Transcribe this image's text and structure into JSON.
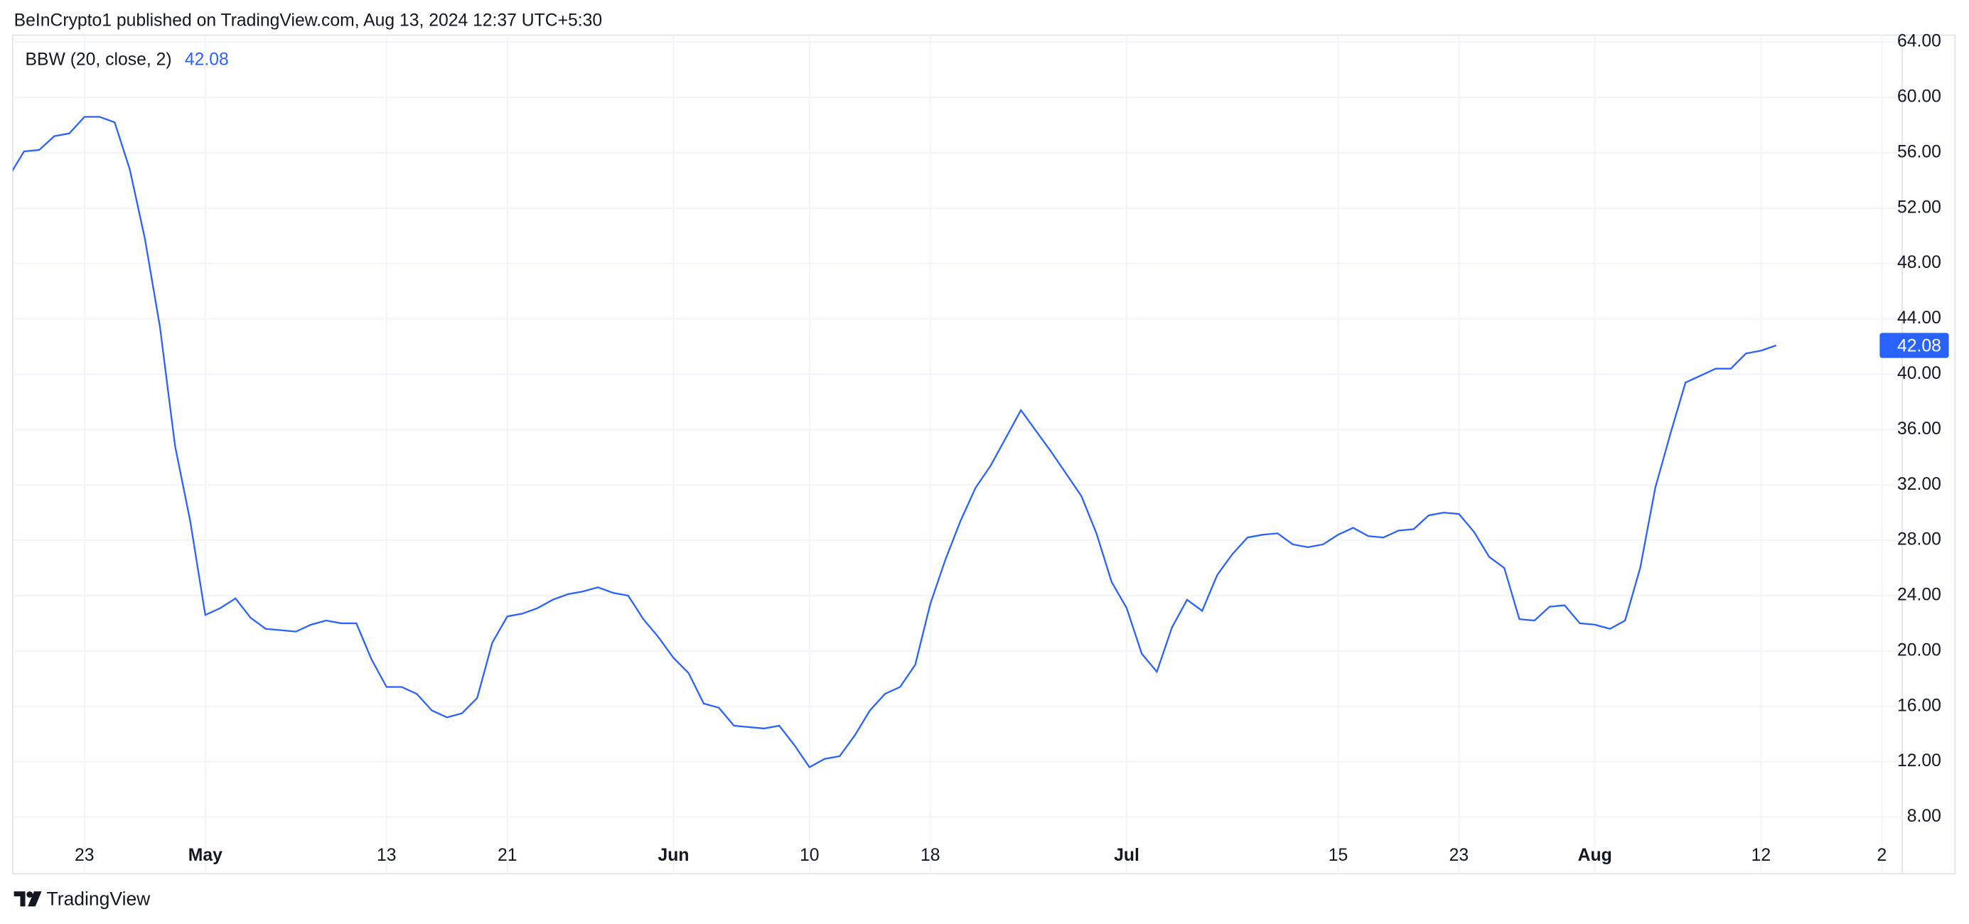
{
  "header": "BeInCrypto1 published on TradingView.com, Aug 13, 2024 12:37 UTC+5:30",
  "footer": "TradingView",
  "chart_data": {
    "type": "line",
    "categories": [
      null,
      null,
      null,
      null,
      null,
      "23",
      null,
      null,
      null,
      null,
      null,
      null,
      null,
      "May",
      null,
      null,
      null,
      null,
      null,
      null,
      null,
      null,
      null,
      null,
      null,
      "13",
      null,
      null,
      null,
      null,
      null,
      null,
      null,
      "21",
      null,
      null,
      null,
      null,
      null,
      null,
      null,
      null,
      null,
      null,
      "Jun",
      null,
      null,
      null,
      null,
      null,
      null,
      null,
      null,
      "10",
      null,
      null,
      null,
      null,
      null,
      null,
      null,
      "18",
      null,
      null,
      null,
      null,
      null,
      null,
      null,
      null,
      null,
      null,
      null,
      null,
      "Jul",
      null,
      null,
      null,
      null,
      null,
      null,
      null,
      null,
      null,
      null,
      null,
      null,
      null,
      "15",
      null,
      null,
      null,
      null,
      null,
      null,
      null,
      "23",
      null,
      null,
      null,
      null,
      null,
      null,
      null,
      null,
      "Aug",
      null,
      null,
      null,
      null,
      null,
      null,
      null,
      null,
      null,
      null,
      "12",
      null,
      null,
      null,
      null,
      null,
      null,
      null,
      "2",
      null
    ],
    "series": [
      {
        "name": "BBW (20, close, 2)",
        "color": "#2962ff",
        "values": [
          54.3,
          56.1,
          56.2,
          57.2,
          57.4,
          58.6,
          58.6,
          58.2,
          54.8,
          49.8,
          43.4,
          34.8,
          29.4,
          22.6,
          23.1,
          23.8,
          22.4,
          21.6,
          21.5,
          21.4,
          21.9,
          22.2,
          22.0,
          22.0,
          19.4,
          17.4,
          17.4,
          16.9,
          15.7,
          15.2,
          15.5,
          16.6,
          20.6,
          22.5,
          22.7,
          23.1,
          23.7,
          24.1,
          24.3,
          24.6,
          24.2,
          24.0,
          22.3,
          21.0,
          19.5,
          18.4,
          16.2,
          15.9,
          14.6,
          14.5,
          14.4,
          14.6,
          13.2,
          11.6,
          12.2,
          12.4,
          13.9,
          15.7,
          16.9,
          17.4,
          19.0,
          23.4,
          26.6,
          29.4,
          31.8,
          33.4,
          35.4,
          37.4,
          35.9,
          34.4,
          32.8,
          31.2,
          28.5,
          25.0,
          23.1,
          19.8,
          18.5,
          21.7,
          23.7,
          22.9,
          25.5,
          27.0,
          28.2,
          28.4,
          28.5,
          27.7,
          27.5,
          27.7,
          28.4,
          28.9,
          28.3,
          28.2,
          28.7,
          28.8,
          29.8,
          30.0,
          29.9,
          28.6,
          26.8,
          26.0,
          22.3,
          22.2,
          23.2,
          23.3,
          22.0,
          21.9,
          21.6,
          22.2,
          26.0,
          31.8,
          35.7,
          39.4,
          39.9,
          40.4,
          40.4,
          41.5,
          41.7,
          42.08,
          null,
          null,
          null,
          null,
          null,
          null,
          null,
          null
        ]
      }
    ],
    "ylim": [
      3.9,
      64.5
    ],
    "yticks": [
      {
        "value": 8,
        "label": "8.00"
      },
      {
        "value": 12,
        "label": "12.00"
      },
      {
        "value": 16,
        "label": "16.00"
      },
      {
        "value": 20,
        "label": "20.00"
      },
      {
        "value": 24,
        "label": "24.00"
      },
      {
        "value": 28,
        "label": "28.00"
      },
      {
        "value": 32,
        "label": "32.00"
      },
      {
        "value": 36,
        "label": "36.00"
      },
      {
        "value": 40,
        "label": "40.00"
      },
      {
        "value": 44,
        "label": "44.00"
      },
      {
        "value": 48,
        "label": "48.00"
      },
      {
        "value": 52,
        "label": "52.00"
      },
      {
        "value": 56,
        "label": "56.00"
      },
      {
        "value": 60,
        "label": "60.00"
      },
      {
        "value": 64,
        "label": "64.00"
      }
    ],
    "grid": true
  }
}
